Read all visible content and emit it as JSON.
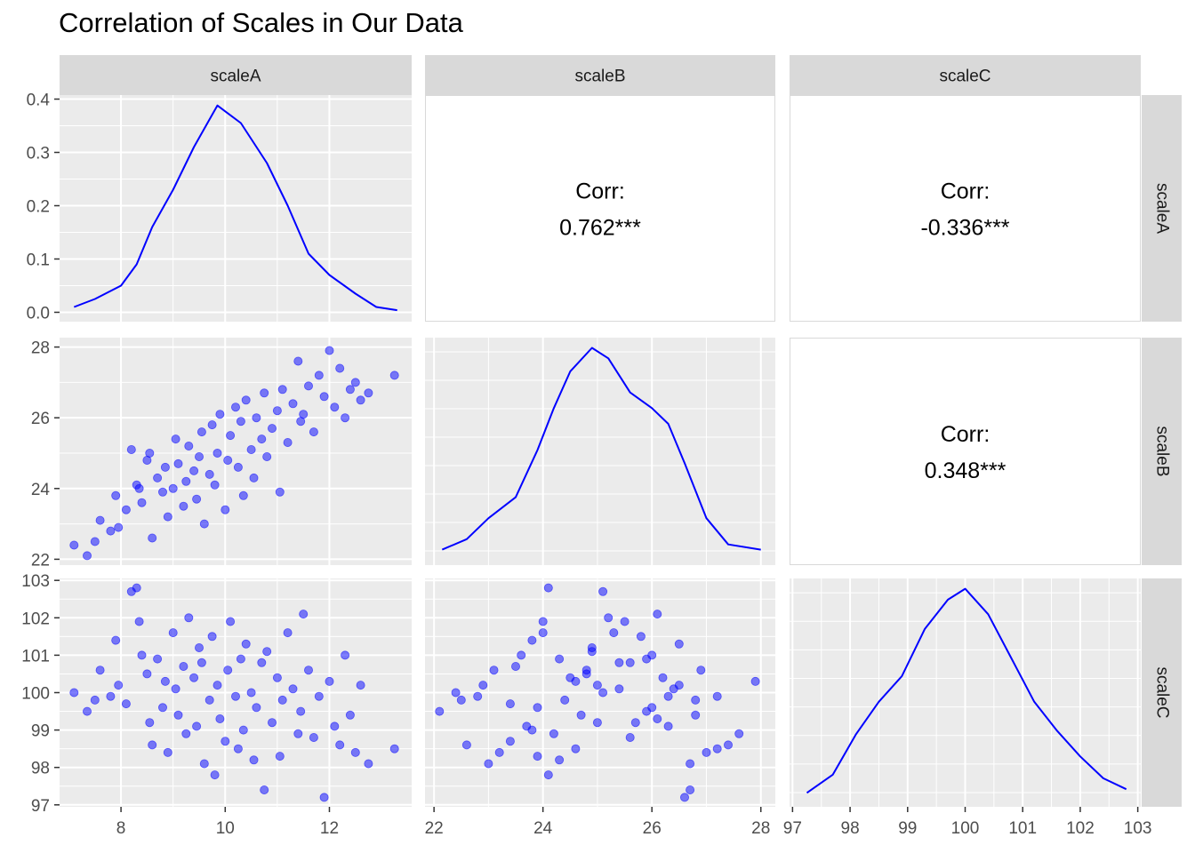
{
  "title": "Correlation of Scales in Our Data",
  "chart_data": {
    "type": "pairs_matrix",
    "title": "Correlation of Scales in Our Data",
    "variables": [
      "scaleA",
      "scaleB",
      "scaleC"
    ],
    "point_color": "#0000ff",
    "line_color": "#0000ff",
    "axes": {
      "scaleA": {
        "range": [
          7.1,
          13.3
        ],
        "ticks": [
          8,
          10,
          12
        ]
      },
      "scaleB": {
        "range": [
          22.1,
          28.0
        ],
        "ticks": [
          22,
          24,
          26,
          28
        ]
      },
      "scaleC": {
        "range": [
          97.2,
          102.8
        ],
        "ticks": [
          97,
          98,
          99,
          100,
          101,
          102,
          103
        ]
      }
    },
    "density_yaxis": {
      "range": [
        0.0,
        0.39
      ],
      "ticks": [
        0.0,
        0.1,
        0.2,
        0.3,
        0.4
      ],
      "tick_labels": [
        "0.0",
        "0.1",
        "0.2",
        "0.3",
        "0.4"
      ]
    },
    "correlations": [
      {
        "row": "scaleA",
        "col": "scaleB",
        "label": "Corr:",
        "value": "0.762***"
      },
      {
        "row": "scaleA",
        "col": "scaleC",
        "label": "Corr:",
        "value": "-0.336***"
      },
      {
        "row": "scaleB",
        "col": "scaleC",
        "label": "Corr:",
        "value": "0.348***"
      }
    ],
    "densities": {
      "scaleA": [
        [
          7.1,
          0.01
        ],
        [
          7.5,
          0.025
        ],
        [
          8.0,
          0.05
        ],
        [
          8.3,
          0.09
        ],
        [
          8.6,
          0.16
        ],
        [
          9.0,
          0.23
        ],
        [
          9.4,
          0.31
        ],
        [
          9.85,
          0.388
        ],
        [
          10.3,
          0.355
        ],
        [
          10.8,
          0.28
        ],
        [
          11.2,
          0.2
        ],
        [
          11.6,
          0.11
        ],
        [
          12.0,
          0.07
        ],
        [
          12.5,
          0.035
        ],
        [
          12.9,
          0.01
        ],
        [
          13.3,
          0.004
        ]
      ],
      "scaleB": [
        [
          22.15,
          0.02
        ],
        [
          22.6,
          0.06
        ],
        [
          23.0,
          0.14
        ],
        [
          23.5,
          0.22
        ],
        [
          23.9,
          0.4
        ],
        [
          24.2,
          0.56
        ],
        [
          24.5,
          0.7
        ],
        [
          24.9,
          0.79
        ],
        [
          25.2,
          0.75
        ],
        [
          25.6,
          0.62
        ],
        [
          26.0,
          0.56
        ],
        [
          26.3,
          0.5
        ],
        [
          26.6,
          0.35
        ],
        [
          27.0,
          0.14
        ],
        [
          27.4,
          0.04
        ],
        [
          28.0,
          0.02
        ]
      ],
      "scaleC": [
        [
          97.25,
          0.01
        ],
        [
          97.7,
          0.06
        ],
        [
          98.1,
          0.17
        ],
        [
          98.5,
          0.26
        ],
        [
          98.9,
          0.33
        ],
        [
          99.3,
          0.46
        ],
        [
          99.7,
          0.54
        ],
        [
          100.0,
          0.57
        ],
        [
          100.4,
          0.5
        ],
        [
          100.8,
          0.38
        ],
        [
          101.2,
          0.26
        ],
        [
          101.6,
          0.18
        ],
        [
          102.0,
          0.11
        ],
        [
          102.4,
          0.05
        ],
        [
          102.8,
          0.02
        ]
      ]
    },
    "points": [
      [
        7.1,
        22.4,
        100.0
      ],
      [
        7.35,
        22.1,
        99.5
      ],
      [
        7.5,
        22.5,
        99.8
      ],
      [
        7.6,
        23.1,
        100.6
      ],
      [
        7.8,
        22.8,
        99.9
      ],
      [
        7.9,
        23.8,
        101.4
      ],
      [
        7.95,
        22.9,
        100.2
      ],
      [
        8.1,
        23.4,
        99.7
      ],
      [
        8.2,
        25.1,
        102.7
      ],
      [
        8.3,
        24.1,
        102.8
      ],
      [
        8.35,
        24.0,
        101.9
      ],
      [
        8.4,
        23.6,
        101.0
      ],
      [
        8.5,
        24.8,
        100.5
      ],
      [
        8.55,
        25.0,
        99.2
      ],
      [
        8.6,
        22.6,
        98.6
      ],
      [
        8.7,
        24.3,
        100.9
      ],
      [
        8.8,
        23.9,
        99.6
      ],
      [
        8.85,
        24.6,
        100.3
      ],
      [
        8.9,
        23.2,
        98.4
      ],
      [
        9.0,
        24.0,
        101.6
      ],
      [
        9.05,
        25.4,
        100.1
      ],
      [
        9.1,
        24.7,
        99.4
      ],
      [
        9.2,
        23.5,
        100.7
      ],
      [
        9.25,
        24.2,
        98.9
      ],
      [
        9.3,
        25.2,
        102.0
      ],
      [
        9.4,
        24.5,
        100.4
      ],
      [
        9.45,
        23.7,
        99.1
      ],
      [
        9.5,
        24.9,
        101.2
      ],
      [
        9.55,
        25.6,
        100.8
      ],
      [
        9.6,
        23.0,
        98.1
      ],
      [
        9.7,
        24.4,
        99.8
      ],
      [
        9.75,
        25.8,
        101.5
      ],
      [
        9.8,
        24.1,
        97.8
      ],
      [
        9.85,
        25.0,
        100.2
      ],
      [
        9.9,
        26.1,
        99.3
      ],
      [
        10.0,
        23.4,
        98.7
      ],
      [
        10.05,
        24.8,
        100.6
      ],
      [
        10.1,
        25.5,
        101.9
      ],
      [
        10.2,
        26.3,
        99.9
      ],
      [
        10.25,
        24.6,
        98.5
      ],
      [
        10.3,
        25.9,
        100.9
      ],
      [
        10.35,
        23.8,
        99.0
      ],
      [
        10.4,
        26.5,
        101.3
      ],
      [
        10.5,
        25.1,
        100.0
      ],
      [
        10.55,
        24.3,
        98.2
      ],
      [
        10.6,
        26.0,
        99.6
      ],
      [
        10.7,
        25.4,
        100.8
      ],
      [
        10.75,
        26.7,
        97.4
      ],
      [
        10.8,
        24.9,
        101.1
      ],
      [
        10.9,
        25.7,
        99.2
      ],
      [
        11.0,
        26.2,
        100.4
      ],
      [
        11.05,
        23.9,
        98.3
      ],
      [
        11.1,
        26.8,
        99.8
      ],
      [
        11.2,
        25.3,
        101.6
      ],
      [
        11.3,
        26.4,
        100.1
      ],
      [
        11.4,
        27.6,
        98.9
      ],
      [
        11.45,
        25.9,
        99.5
      ],
      [
        11.5,
        26.1,
        102.1
      ],
      [
        11.6,
        26.9,
        100.6
      ],
      [
        11.7,
        25.6,
        98.8
      ],
      [
        11.8,
        27.2,
        99.9
      ],
      [
        11.9,
        26.6,
        97.2
      ],
      [
        12.0,
        27.9,
        100.3
      ],
      [
        12.1,
        26.3,
        99.1
      ],
      [
        12.2,
        27.4,
        98.6
      ],
      [
        12.3,
        26.0,
        101.0
      ],
      [
        12.4,
        26.8,
        99.4
      ],
      [
        12.5,
        27.0,
        98.4
      ],
      [
        12.6,
        26.5,
        100.2
      ],
      [
        12.75,
        26.7,
        98.1
      ],
      [
        13.25,
        27.2,
        98.5
      ]
    ]
  }
}
